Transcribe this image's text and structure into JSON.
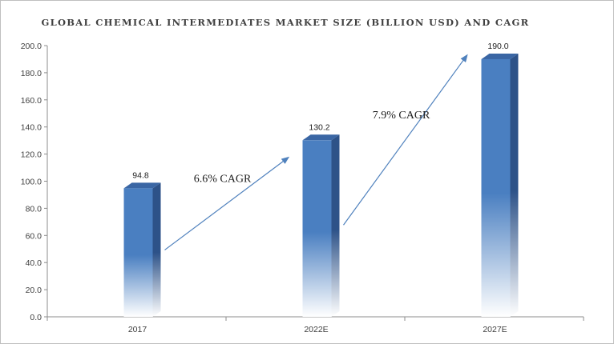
{
  "chart_data": {
    "type": "bar",
    "title": "GLOBAL CHEMICAL INTERMEDIATES MARKET SIZE (BILLION USD) AND CAGR",
    "xlabel": "",
    "ylabel": "",
    "categories": [
      "2017",
      "2022E",
      "2027E"
    ],
    "values": [
      94.8,
      130.2,
      190.0
    ],
    "value_labels": [
      "94.8",
      "130.2",
      "190.0"
    ],
    "ylim": [
      0,
      200
    ],
    "yticks": [
      0,
      20,
      40,
      60,
      80,
      100,
      120,
      140,
      160,
      180,
      200
    ],
    "ytick_labels": [
      "0.0",
      "20.0",
      "40.0",
      "60.0",
      "80.0",
      "100.0",
      "120.0",
      "140.0",
      "160.0",
      "180.0",
      "200.0"
    ],
    "grid": false,
    "legend": "none",
    "annotations": [
      {
        "text": "6.6% CAGR",
        "from_category": "2017",
        "to_category": "2022E"
      },
      {
        "text": "7.9% CAGR",
        "from_category": "2022E",
        "to_category": "2027E"
      }
    ],
    "colors": {
      "bar_front": "#4a7fc1",
      "bar_side": "#2d5288",
      "bar_top": "#3a66a4",
      "arrow": "#4f81bd",
      "axis": "#8c8c8c"
    }
  }
}
